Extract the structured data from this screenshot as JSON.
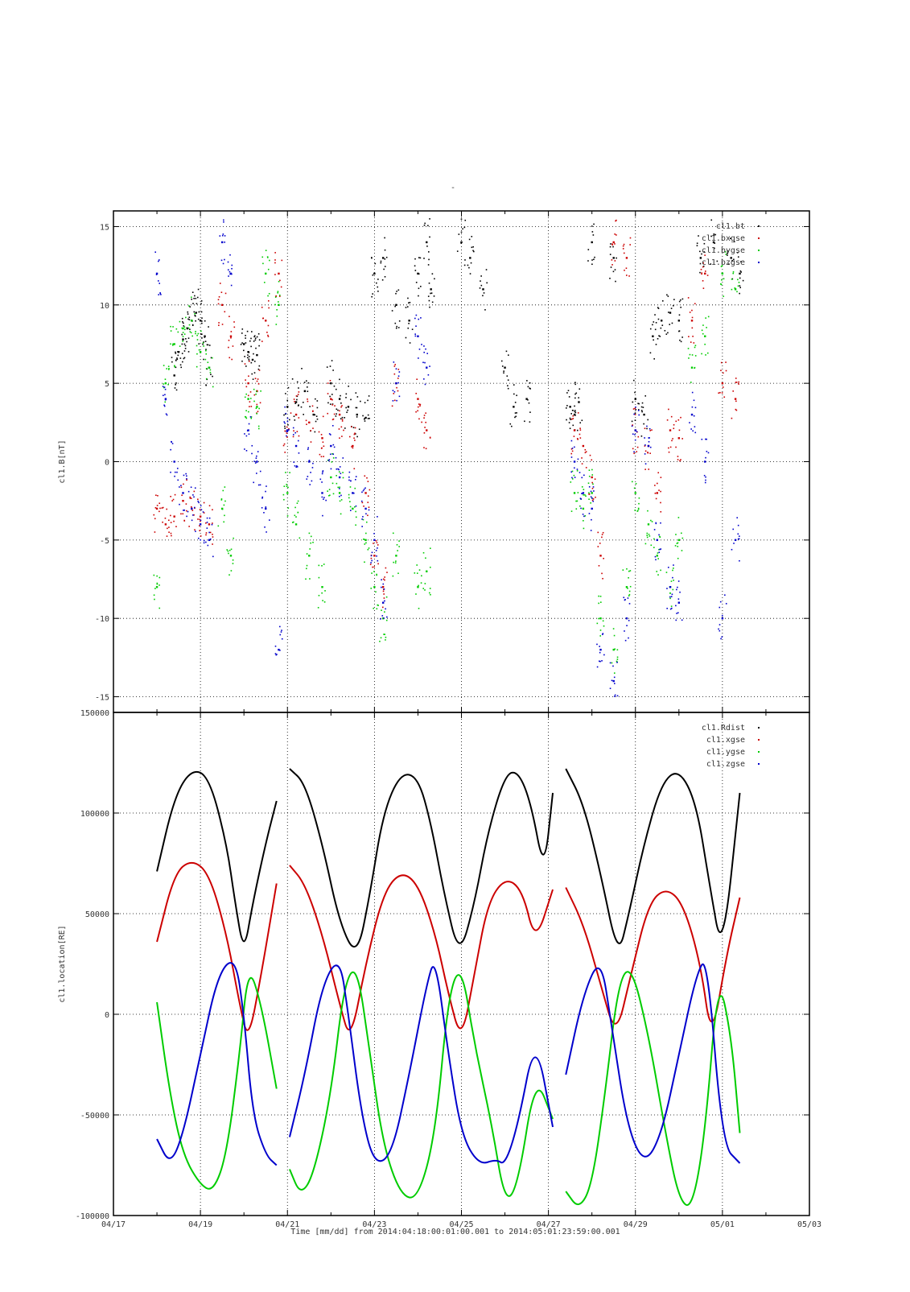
{
  "figure": {
    "title": "-",
    "xlabel": "Time [mm/dd]  from 2014:04:18:00:01:00.001  to  2014:05:01:23:59:00.001"
  },
  "colors": {
    "black": "#000000",
    "red": "#cc0000",
    "green": "#00cc00",
    "blue": "#0000cc"
  },
  "chart_data": [
    {
      "type": "scatter",
      "ylabel": "cl1.B[nT]",
      "x_range": [
        "04/17",
        "05/03"
      ],
      "xlim_days": [
        0,
        16
      ],
      "ylim": [
        -16,
        16
      ],
      "yticks": [
        -15,
        -10,
        -5,
        0,
        5,
        10,
        15
      ],
      "xticks": [
        "04/17",
        "04/19",
        "04/21",
        "04/23",
        "04/25",
        "04/27",
        "04/29",
        "05/01",
        "05/03"
      ],
      "grid": true,
      "legend_position": "top-right",
      "data_gaps_days": [
        [
          2.8,
          3.0
        ],
        [
          10.3,
          10.5
        ]
      ],
      "series": [
        {
          "name": "cl1.bt",
          "color": "black",
          "x": [
            1.4,
            1.5,
            1.6,
            1.7,
            1.8,
            1.9,
            2.0,
            2.1,
            2.2,
            3.0,
            3.1,
            3.2,
            3.3,
            4.0,
            4.2,
            4.4,
            4.6,
            5.0,
            5.2,
            5.4,
            5.6,
            5.8,
            6.0,
            6.2,
            6.5,
            6.8,
            7.0,
            7.2,
            7.3,
            8.0,
            8.2,
            8.5,
            9.0,
            9.2,
            9.5,
            10.5,
            10.6,
            10.7,
            11.0,
            11.5,
            12.0,
            12.2,
            12.4,
            12.6,
            12.8,
            13.0,
            13.5,
            13.8,
            14.2,
            14.4
          ],
          "y": [
            5.5,
            7.0,
            7.8,
            8.5,
            9.0,
            9.5,
            9.0,
            8.0,
            6.0,
            7.5,
            7.0,
            6.5,
            6.8,
            3.5,
            3.8,
            4.5,
            3.0,
            5.0,
            4.0,
            3.5,
            3.0,
            2.8,
            12.0,
            13.0,
            10.0,
            9.0,
            12.0,
            14.0,
            11.0,
            14.0,
            13.0,
            11.0,
            6.0,
            3.5,
            4.0,
            3.5,
            3.0,
            3.8,
            14.0,
            13.0,
            4.0,
            3.0,
            8.0,
            9.0,
            9.5,
            9.0,
            13.0,
            14.0,
            13.0,
            12.0
          ]
        },
        {
          "name": "cl1.bxgse",
          "color": "red",
          "x": [
            1.0,
            1.2,
            1.4,
            1.6,
            1.8,
            2.0,
            2.2,
            2.5,
            2.7,
            3.1,
            3.3,
            3.5,
            3.8,
            4.0,
            4.2,
            4.5,
            4.8,
            5.0,
            5.2,
            5.5,
            5.8,
            6.0,
            6.2,
            6.5,
            7.0,
            7.2,
            10.6,
            10.8,
            11.0,
            11.2,
            11.5,
            11.8,
            12.0,
            12.3,
            12.5,
            12.8,
            13.0,
            13.3,
            13.6,
            14.0,
            14.3
          ],
          "y": [
            -3.0,
            -4.0,
            -3.5,
            -2.5,
            -3.0,
            -3.5,
            -4.0,
            10.0,
            8.0,
            5.0,
            4.5,
            9.0,
            12.0,
            2.0,
            3.0,
            2.5,
            1.5,
            4.0,
            3.0,
            1.0,
            -2.0,
            -6.0,
            -8.0,
            5.0,
            4.0,
            2.0,
            2.0,
            1.0,
            -1.0,
            -6.0,
            14.0,
            13.0,
            2.0,
            1.0,
            -2.0,
            2.0,
            1.5,
            9.0,
            12.0,
            5.0,
            4.0
          ]
        },
        {
          "name": "cl1.bygse",
          "color": "green",
          "x": [
            1.0,
            1.2,
            1.4,
            1.6,
            1.8,
            2.0,
            2.2,
            2.5,
            2.7,
            3.1,
            3.3,
            3.5,
            3.8,
            4.0,
            4.2,
            4.5,
            4.8,
            5.0,
            5.2,
            5.5,
            5.8,
            6.0,
            6.2,
            6.5,
            7.0,
            7.2,
            10.6,
            10.8,
            11.0,
            11.2,
            11.5,
            11.8,
            12.0,
            12.3,
            12.5,
            12.8,
            13.0,
            13.3,
            13.6,
            14.0,
            14.3
          ],
          "y": [
            -8.0,
            5.0,
            7.5,
            8.5,
            9.0,
            7.0,
            6.0,
            -3.0,
            -6.0,
            4.0,
            3.5,
            12.0,
            10.0,
            -2.0,
            -4.0,
            -6.0,
            -8.0,
            -1.0,
            -2.0,
            -3.0,
            -5.0,
            -8.0,
            -10.0,
            -6.0,
            -8.0,
            -7.0,
            -2.0,
            -3.0,
            -2.0,
            -10.0,
            -12.0,
            -8.0,
            -2.0,
            -4.0,
            -6.0,
            -8.0,
            -5.0,
            6.0,
            8.0,
            12.0,
            11.0
          ]
        },
        {
          "name": "cl1.bzgse",
          "color": "blue",
          "x": [
            1.0,
            1.2,
            1.4,
            1.6,
            1.8,
            2.0,
            2.2,
            2.5,
            2.7,
            3.1,
            3.3,
            3.5,
            3.8,
            4.0,
            4.2,
            4.5,
            4.8,
            5.0,
            5.2,
            5.5,
            5.8,
            6.0,
            6.2,
            6.5,
            7.0,
            7.2,
            10.6,
            10.8,
            11.0,
            11.2,
            11.5,
            11.8,
            12.0,
            12.3,
            12.5,
            12.8,
            13.0,
            13.3,
            13.6,
            14.0,
            14.3
          ],
          "y": [
            12.0,
            4.0,
            0.0,
            -2.0,
            -3.0,
            -4.0,
            -5.0,
            14.0,
            12.0,
            2.0,
            0.0,
            -3.0,
            -12.0,
            2.0,
            1.0,
            0.0,
            -2.0,
            1.0,
            -1.0,
            -2.0,
            -3.0,
            -5.0,
            -9.0,
            5.0,
            8.0,
            6.0,
            0.0,
            -2.0,
            -3.0,
            -12.0,
            -14.0,
            -10.0,
            2.0,
            1.0,
            -5.0,
            -8.0,
            -9.0,
            3.0,
            0.0,
            -10.0,
            -5.0
          ]
        }
      ]
    },
    {
      "type": "line",
      "ylabel": "cl1.location[RE]",
      "x_range": [
        "04/17",
        "05/03"
      ],
      "xlim_days": [
        0,
        16
      ],
      "ylim": [
        -100000,
        150000
      ],
      "yticks": [
        -100000,
        -50000,
        0,
        50000,
        100000,
        150000
      ],
      "xticks": [
        "04/17",
        "04/19",
        "04/21",
        "04/23",
        "04/25",
        "04/27",
        "04/29",
        "05/01",
        "05/03"
      ],
      "grid": true,
      "legend_position": "top-right",
      "segments_days": [
        [
          1.0,
          3.75
        ],
        [
          4.05,
          10.1
        ],
        [
          10.4,
          14.4
        ]
      ],
      "series": [
        {
          "name": "cl1.Rdist",
          "color": "black",
          "x": [
            1.0,
            1.4,
            1.8,
            2.2,
            2.6,
            2.8,
            3.0,
            3.2,
            3.5,
            3.75,
            4.05,
            4.4,
            4.8,
            5.2,
            5.6,
            5.9,
            6.2,
            6.6,
            7.0,
            7.3,
            7.6,
            7.95,
            8.3,
            8.6,
            9.0,
            9.3,
            9.6,
            9.9,
            10.1,
            10.4,
            10.8,
            11.2,
            11.6,
            11.85,
            12.2,
            12.6,
            13.0,
            13.4,
            13.7,
            14.0,
            14.4
          ],
          "y": [
            71000,
            108000,
            122000,
            118000,
            85000,
            55000,
            30000,
            55000,
            85000,
            106000,
            122000,
            115000,
            85000,
            45000,
            28000,
            60000,
            100000,
            120000,
            118000,
            95000,
            60000,
            28000,
            55000,
            90000,
            119000,
            121000,
            105000,
            70000,
            110000,
            122000,
            105000,
            70000,
            28000,
            50000,
            85000,
            115000,
            122000,
            105000,
            65000,
            28000,
            110000
          ]
        },
        {
          "name": "cl1.xgse",
          "color": "red",
          "x": [
            1.0,
            1.4,
            1.8,
            2.2,
            2.6,
            2.9,
            3.1,
            3.4,
            3.75,
            4.05,
            4.4,
            4.8,
            5.2,
            5.45,
            5.8,
            6.2,
            6.6,
            7.0,
            7.4,
            7.7,
            8.0,
            8.3,
            8.6,
            9.0,
            9.4,
            9.7,
            10.1,
            10.4,
            10.8,
            11.2,
            11.55,
            11.9,
            12.3,
            12.7,
            13.1,
            13.5,
            13.75,
            14.1,
            14.4
          ],
          "y": [
            36000,
            70000,
            77000,
            70000,
            40000,
            5000,
            -14000,
            20000,
            65000,
            74000,
            65000,
            40000,
            5000,
            -14000,
            25000,
            60000,
            71000,
            65000,
            40000,
            10000,
            -14000,
            20000,
            55000,
            68000,
            62000,
            35000,
            62000,
            63000,
            45000,
            15000,
            -12000,
            20000,
            55000,
            63000,
            55000,
            25000,
            -14000,
            30000,
            58000
          ]
        },
        {
          "name": "cl1.ygse",
          "color": "green",
          "x": [
            1.0,
            1.3,
            1.6,
            2.0,
            2.3,
            2.6,
            2.9,
            3.1,
            3.4,
            3.75,
            4.05,
            4.3,
            4.6,
            5.0,
            5.3,
            5.6,
            5.9,
            6.2,
            6.6,
            7.0,
            7.4,
            7.7,
            8.0,
            8.3,
            8.7,
            9.0,
            9.3,
            9.7,
            10.1,
            10.4,
            10.7,
            11.0,
            11.3,
            11.6,
            11.9,
            12.3,
            12.7,
            13.0,
            13.3,
            13.6,
            13.9,
            14.2,
            14.4
          ],
          "y": [
            6000,
            -40000,
            -70000,
            -85000,
            -88000,
            -70000,
            -20000,
            25000,
            5000,
            -37000,
            -77000,
            -90000,
            -80000,
            -40000,
            15000,
            25000,
            -20000,
            -65000,
            -90000,
            -92000,
            -60000,
            10000,
            25000,
            -15000,
            -55000,
            -94000,
            -85000,
            -30000,
            -52000,
            -88000,
            -97000,
            -85000,
            -40000,
            15000,
            25000,
            -10000,
            -60000,
            -92000,
            -97000,
            -60000,
            20000,
            -10000,
            -59000
          ]
        },
        {
          "name": "cl1.zgse",
          "color": "blue",
          "x": [
            1.0,
            1.3,
            1.6,
            2.0,
            2.4,
            2.8,
            3.0,
            3.2,
            3.5,
            3.75,
            4.05,
            4.4,
            4.8,
            5.2,
            5.4,
            5.7,
            6.0,
            6.4,
            6.8,
            7.2,
            7.4,
            7.7,
            8.0,
            8.4,
            8.8,
            9.0,
            9.3,
            9.7,
            10.1,
            10.4,
            10.8,
            11.2,
            11.45,
            11.8,
            12.2,
            12.6,
            13.0,
            13.4,
            13.65,
            14.0,
            14.4
          ],
          "y": [
            -62000,
            -75000,
            -60000,
            -20000,
            20000,
            29000,
            0,
            -50000,
            -70000,
            -75000,
            -61000,
            -30000,
            15000,
            29000,
            0,
            -50000,
            -75000,
            -70000,
            -30000,
            15000,
            29000,
            -20000,
            -60000,
            -75000,
            -72000,
            -75000,
            -55000,
            -10000,
            -56000,
            -30000,
            10000,
            29000,
            -5000,
            -55000,
            -75000,
            -60000,
            -20000,
            20000,
            29000,
            -65000,
            -74000
          ]
        }
      ]
    }
  ]
}
